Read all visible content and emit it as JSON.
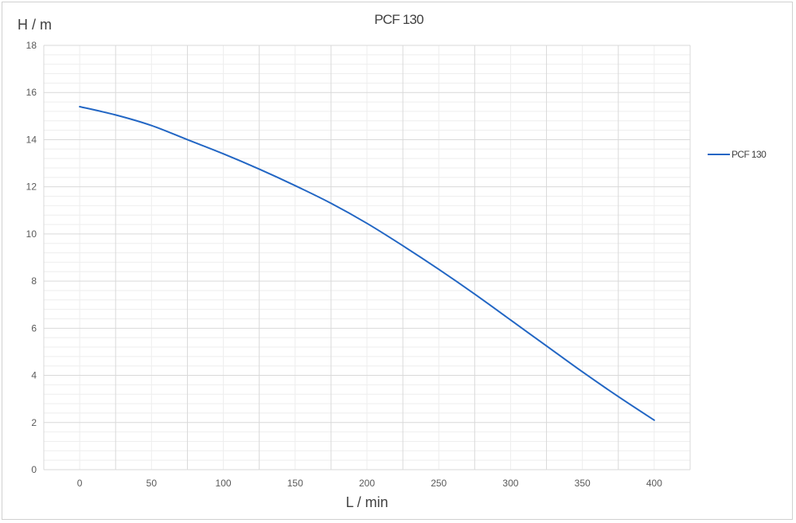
{
  "chart_data": {
    "type": "line",
    "title": "PCF 130",
    "xlabel": "L / min",
    "ylabel": "H / m",
    "xlim": [
      -25,
      425
    ],
    "ylim": [
      0,
      18
    ],
    "x_ticks": [
      0,
      50,
      100,
      150,
      200,
      250,
      300,
      350,
      400
    ],
    "y_ticks": [
      0,
      2,
      4,
      6,
      8,
      10,
      12,
      14,
      16,
      18
    ],
    "grid": true,
    "legend_position": "right",
    "series": [
      {
        "name": "PCF 130",
        "color": "#2266c4",
        "x": [
          0,
          25,
          50,
          75,
          100,
          125,
          150,
          175,
          200,
          225,
          250,
          275,
          300,
          325,
          350,
          375,
          400
        ],
        "y": [
          15.4,
          15.05,
          14.6,
          14.0,
          13.4,
          12.75,
          12.05,
          11.3,
          10.45,
          9.5,
          8.5,
          7.45,
          6.35,
          5.25,
          4.15,
          3.1,
          2.1
        ]
      }
    ]
  }
}
